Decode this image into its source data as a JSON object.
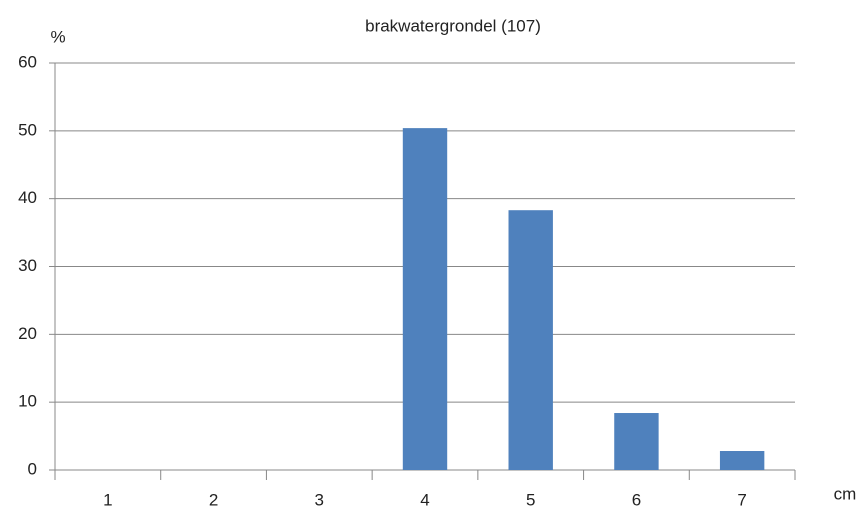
{
  "chart_data": {
    "type": "bar",
    "title": "brakwatergrondel (107)",
    "y_label": "%",
    "x_label": "cm",
    "categories": [
      "1",
      "2",
      "3",
      "4",
      "5",
      "6",
      "7"
    ],
    "values": [
      0,
      0,
      0,
      50.4,
      38.3,
      8.4,
      2.8
    ],
    "color": "#4f81bd",
    "ylim": [
      0,
      60
    ],
    "yticks": [
      0,
      10,
      20,
      30,
      40,
      50,
      60
    ],
    "grid": true
  }
}
